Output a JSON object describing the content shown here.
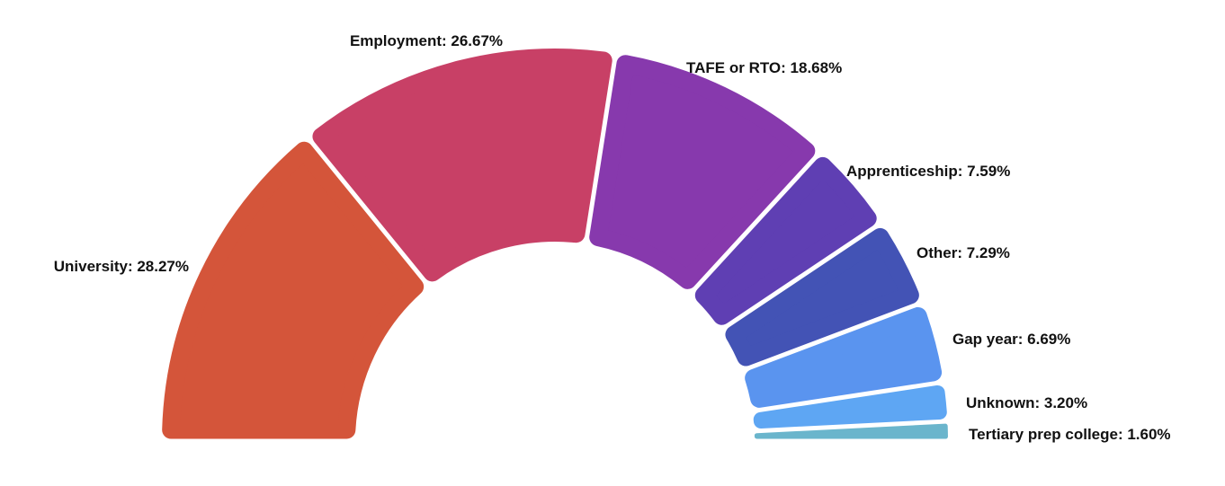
{
  "chart_data": {
    "type": "pie",
    "variant": "half-donut",
    "title": "",
    "slices": [
      {
        "label": "University",
        "value": 28.27,
        "display": "University: 28.27%",
        "color": "#d4553a"
      },
      {
        "label": "Employment",
        "value": 26.67,
        "display": "Employment: 26.67%",
        "color": "#c84066"
      },
      {
        "label": "TAFE or RTO",
        "value": 18.68,
        "display": "TAFE or RTO: 18.68%",
        "color": "#8739ad"
      },
      {
        "label": "Apprenticeship",
        "value": 7.59,
        "display": "Apprenticeship: 7.59%",
        "color": "#5f3fb3"
      },
      {
        "label": "Other",
        "value": 7.29,
        "display": "Other: 7.29%",
        "color": "#4353b5"
      },
      {
        "label": "Gap year",
        "value": 6.69,
        "display": "Gap year: 6.69%",
        "color": "#5a94ef"
      },
      {
        "label": "Unknown",
        "value": 3.2,
        "display": "Unknown: 3.20%",
        "color": "#5ea6f3"
      },
      {
        "label": "Tertiary prep college",
        "value": 1.6,
        "display": "Tertiary prep college: 1.60%",
        "color": "#6ab5cc"
      }
    ]
  }
}
